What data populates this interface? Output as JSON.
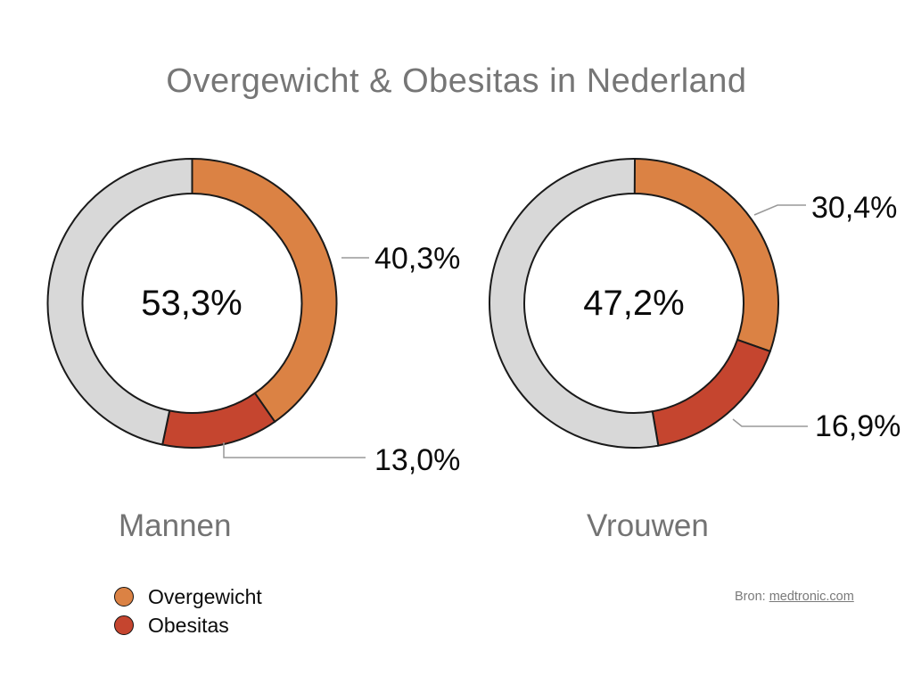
{
  "title": "Overgewicht & Obesitas in Nederland",
  "colors": {
    "overgewicht": "#DB8244",
    "obesitas": "#C5452F",
    "rest": "#D8D8D8",
    "segment_outline": "#1a1a1a",
    "callout_line": "#999999",
    "title_text": "#767676",
    "label_text": "#0b0b0b"
  },
  "chart_data": [
    {
      "type": "pie",
      "variant": "donut",
      "title": "Mannen",
      "center_label": "53,3%",
      "center_value": 53.3,
      "start_angle_deg": 0,
      "direction": "clockwise",
      "slices": [
        {
          "label": "Overgewicht",
          "value": 40.3,
          "display": "40,3%",
          "color": "#DB8244"
        },
        {
          "label": "Obesitas",
          "value": 13.0,
          "display": "13,0%",
          "color": "#C5452F"
        },
        {
          "label": "Rest",
          "value": 46.7,
          "display": "",
          "color": "#D8D8D8"
        }
      ]
    },
    {
      "type": "pie",
      "variant": "donut",
      "title": "Vrouwen",
      "center_label": "47,2%",
      "center_value": 47.2,
      "start_angle_deg": 0,
      "direction": "clockwise",
      "slices": [
        {
          "label": "Overgewicht",
          "value": 30.4,
          "display": "30,4%",
          "color": "#DB8244"
        },
        {
          "label": "Obesitas",
          "value": 16.9,
          "display": "16,9%",
          "color": "#C5452F"
        },
        {
          "label": "Rest",
          "value": 52.8,
          "display": "",
          "color": "#D8D8D8"
        }
      ]
    }
  ],
  "legend": {
    "items": [
      {
        "label": "Overgewicht",
        "color": "#DB8244"
      },
      {
        "label": "Obesitas",
        "color": "#C5452F"
      }
    ]
  },
  "source": {
    "prefix": "Bron: ",
    "link": "medtronic.com"
  }
}
